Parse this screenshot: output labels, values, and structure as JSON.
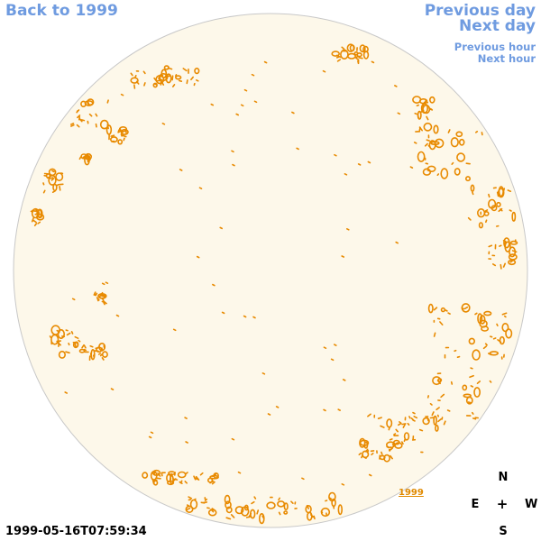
{
  "nav": {
    "back": "Back to 1999",
    "previous_day": "Previous day",
    "next_day": "Next day",
    "previous_hour": "Previous hour",
    "next_hour": "Next hour"
  },
  "compass": {
    "north": "N",
    "east": "E",
    "west": "W",
    "south": "S",
    "center": "+"
  },
  "year_label": "1999",
  "timestamp": "1999-05-16T07:59:34",
  "colors": {
    "link": "#6f9be0",
    "disk_fill": "#fdf8ea",
    "disk_border": "#c8c8c8",
    "contour": "#e88a00"
  }
}
